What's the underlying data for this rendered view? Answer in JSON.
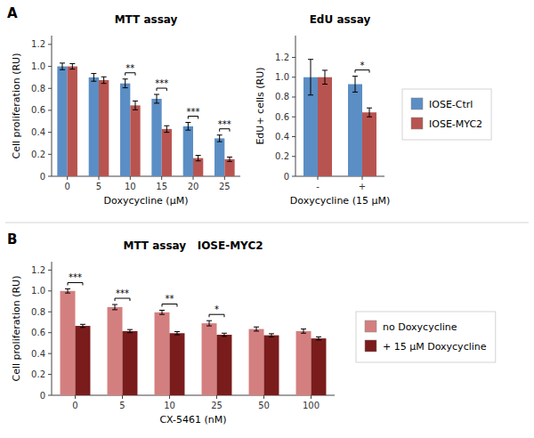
{
  "chart_data": [
    {
      "type": "bar",
      "panel": "A",
      "title": "MTT assay",
      "x_label": "Doxycycline (μM)",
      "y_label": "Cell proliferation (RU)",
      "categories": [
        "0",
        "5",
        "10",
        "15",
        "20",
        "25"
      ],
      "series": [
        {
          "name": "IOSE-Ctrl",
          "color": "#5b8ec4",
          "values": [
            1.0,
            0.9,
            0.845,
            0.705,
            0.455,
            0.345
          ],
          "errors": [
            0.03,
            0.035,
            0.04,
            0.04,
            0.035,
            0.03
          ]
        },
        {
          "name": "IOSE-MYC2",
          "color": "#b85450",
          "values": [
            1.0,
            0.875,
            0.645,
            0.43,
            0.165,
            0.155
          ],
          "errors": [
            0.025,
            0.03,
            0.04,
            0.03,
            0.025,
            0.02
          ]
        }
      ],
      "ylim": [
        0,
        1.28
      ],
      "yticks": [
        0,
        0.2,
        0.4,
        0.6,
        0.8,
        {
          "value": 1.0,
          "label": "1.0"
        },
        1.2
      ],
      "annotations": [
        {
          "category": "10",
          "text": "**"
        },
        {
          "category": "15",
          "text": "***"
        },
        {
          "category": "20",
          "text": "***"
        },
        {
          "category": "25",
          "text": "***"
        }
      ]
    },
    {
      "type": "bar",
      "title": "EdU assay",
      "x_label": "Doxycycline (15 μM)",
      "y_label": "EdU+ cells (RU)",
      "categories": [
        "-",
        "+"
      ],
      "series": [
        {
          "name": "IOSE-Ctrl",
          "color": "#5b8ec4",
          "values": [
            1.0,
            0.93
          ],
          "errors": [
            0.18,
            0.08
          ]
        },
        {
          "name": "IOSE-MYC2",
          "color": "#b85450",
          "values": [
            1.0,
            0.645
          ],
          "errors": [
            0.07,
            0.045
          ]
        }
      ],
      "ylim": [
        0,
        1.42
      ],
      "yticks": [
        0,
        0.2,
        0.4,
        0.6,
        0.8,
        {
          "value": 1.0,
          "label": "1.0"
        },
        1.2
      ],
      "annotations": [
        {
          "category": "+",
          "text": "*"
        }
      ],
      "legend": "right"
    },
    {
      "type": "bar",
      "panel": "B",
      "title": "MTT assay   IOSE-MYC2",
      "x_label": "CX-5461 (nM)",
      "y_label": "Cell proliferation (RU)",
      "categories": [
        "0",
        "5",
        "10",
        "25",
        "50",
        "100"
      ],
      "series": [
        {
          "name": "no Doxycycline",
          "color": "#d47f7f",
          "values": [
            1.0,
            0.845,
            0.795,
            0.69,
            0.635,
            0.615
          ],
          "errors": [
            0.02,
            0.025,
            0.02,
            0.025,
            0.02,
            0.02
          ]
        },
        {
          "name": "+ 15 μM Doxycycline",
          "color": "#7a1c1c",
          "values": [
            0.665,
            0.615,
            0.595,
            0.58,
            0.575,
            0.545
          ],
          "errors": [
            0.015,
            0.015,
            0.015,
            0.015,
            0.015,
            0.015
          ]
        }
      ],
      "ylim": [
        0,
        1.28
      ],
      "yticks": [
        0,
        0.2,
        0.4,
        0.6,
        0.8,
        {
          "value": 1.0,
          "label": "1.0"
        },
        1.2
      ],
      "annotations": [
        {
          "category": "0",
          "text": "***"
        },
        {
          "category": "5",
          "text": "***"
        },
        {
          "category": "10",
          "text": "**"
        },
        {
          "category": "25",
          "text": "*"
        }
      ],
      "legend": "right"
    }
  ]
}
